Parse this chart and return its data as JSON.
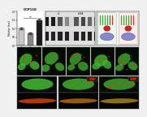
{
  "bar_values": [
    1.0,
    0.72,
    1.48
  ],
  "bar_errors": [
    0.06,
    0.05,
    0.1
  ],
  "bar_colors": [
    "#c8c8c8",
    "#888888",
    "#1a1a1a"
  ],
  "bar_labels": [
    "siC",
    "si1",
    "si2"
  ],
  "bar_title": "CCP110",
  "ylabel": "Relative level",
  "ylim": [
    0,
    2.0
  ],
  "yticks": [
    0,
    0.5,
    1.0,
    1.5,
    2.0
  ],
  "bg_color": "#f0f0f0",
  "wb_lane_colors_top": [
    "#1a1a1a",
    "#1a1a1a",
    "#555555",
    "#888888",
    "#555555",
    "#444444",
    "#666666",
    "#777777"
  ],
  "wb_lane_colors_bot": [
    "#222222",
    "#222222",
    "#222222",
    "#222222",
    "#222222",
    "#222222",
    "#222222",
    "#222222"
  ],
  "schema_bg": "#f8f8f8",
  "mid_panel_bg": "#0a1008",
  "bot_panel_bg": "#080808"
}
